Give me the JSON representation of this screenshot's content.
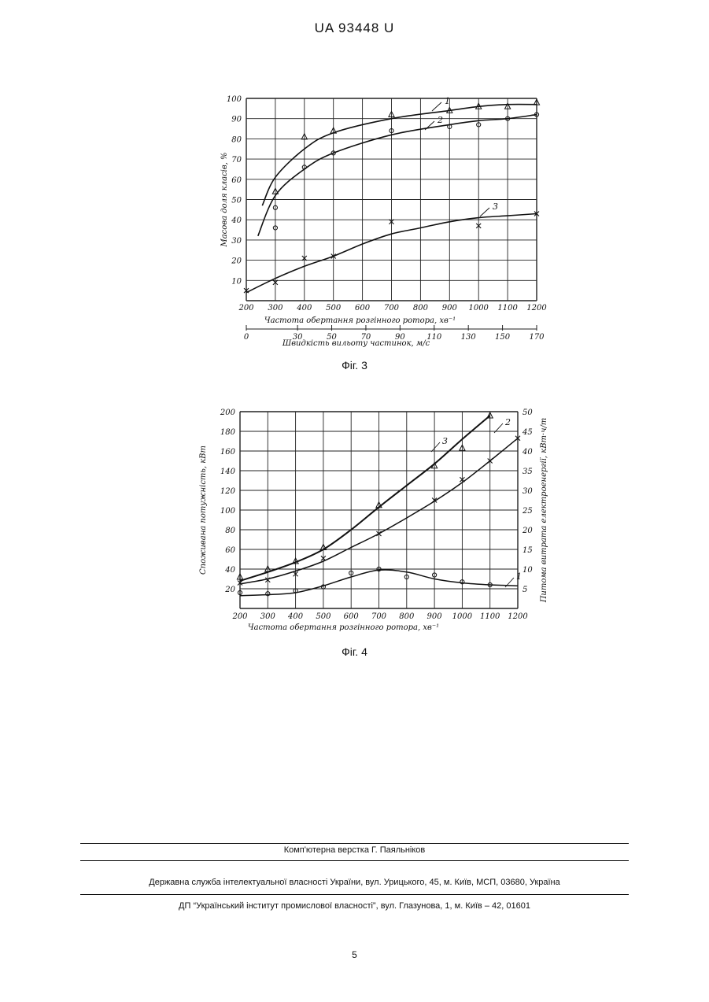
{
  "header": "UA   93448   U",
  "fig3": {
    "caption": "Фіг. 3",
    "ylabel": "Масова доля класів, %",
    "xlabel": "Частота обертання розгінного ротора, хв⁻¹",
    "xlabel2": "Швидкість вильоту частинок, м/с",
    "y_ticks": [
      "10",
      "20",
      "30",
      "40",
      "50",
      "60",
      "70",
      "80",
      "90",
      "100"
    ],
    "x_ticks": [
      "200",
      "300",
      "400",
      "500",
      "600",
      "700",
      "800",
      "900",
      "1000",
      "1100",
      "1200"
    ],
    "x2_ticks": [
      "0",
      "30",
      "50",
      "70",
      "90",
      "110",
      "130",
      "150",
      "170"
    ]
  },
  "fig4": {
    "caption": "Фіг. 4",
    "ylabel_left": "Споживана потужність, кВт",
    "ylabel_right": "Питома витрата електроенергії, кВт·ч/т",
    "xlabel": "Частота обертання розгінного ротора, хв⁻¹",
    "y_left_ticks": [
      "20",
      "40",
      "60",
      "80",
      "100",
      "120",
      "140",
      "160",
      "180",
      "200"
    ],
    "y_right_ticks": [
      "5",
      "10",
      "15",
      "20",
      "25",
      "30",
      "35",
      "40",
      "45",
      "50"
    ],
    "x_ticks": [
      "200",
      "300",
      "400",
      "500",
      "600",
      "700",
      "800",
      "900",
      "1000",
      "1100",
      "1200"
    ]
  },
  "chart_data": [
    {
      "type": "line",
      "title": "Фіг. 3",
      "xlabel": "Частота обертання розгінного ротора, хв⁻¹",
      "ylabel": "Масова доля класів, %",
      "xlim": [
        200,
        1200
      ],
      "ylim": [
        0,
        100
      ],
      "secondary_x": {
        "label": "Швидкість вильоту частинок, м/с",
        "ticks": [
          0,
          30,
          50,
          70,
          90,
          110,
          130,
          150,
          170
        ]
      },
      "grid": true,
      "series": [
        {
          "name": "1",
          "x": [
            255,
            300,
            400,
            500,
            700,
            900,
            1000,
            1100,
            1200
          ],
          "y": [
            47,
            61,
            75,
            83,
            90,
            94,
            96,
            97,
            97
          ],
          "points": {
            "marker": "triangle",
            "x": [
              300,
              400,
              500,
              700,
              900,
              1000,
              1100,
              1200
            ],
            "y": [
              54,
              81,
              84,
              92,
              94,
              96,
              96,
              98
            ]
          }
        },
        {
          "name": "2",
          "x": [
            240,
            300,
            400,
            500,
            700,
            900,
            1000,
            1100,
            1200
          ],
          "y": [
            32,
            52,
            65,
            73,
            82,
            87,
            89,
            90,
            92
          ],
          "points": {
            "marker": "circle",
            "x": [
              300,
              300,
              400,
              500,
              700,
              900,
              1000,
              1100,
              1200
            ],
            "y": [
              36,
              46,
              66,
              73,
              84,
              86,
              87,
              90,
              92
            ]
          }
        },
        {
          "name": "3",
          "x": [
            200,
            300,
            400,
            500,
            600,
            700,
            800,
            900,
            1000,
            1100,
            1200
          ],
          "y": [
            4,
            11,
            17,
            22,
            28,
            33,
            36,
            39,
            41,
            42,
            43
          ],
          "points": {
            "marker": "x",
            "x": [
              200,
              300,
              400,
              500,
              700,
              1000,
              1200
            ],
            "y": [
              5,
              9,
              21,
              22,
              39,
              37,
              43
            ]
          }
        }
      ]
    },
    {
      "type": "line",
      "title": "Фіг. 4",
      "xlabel": "Частота обертання розгінного ротора, хв⁻¹",
      "ylabel": "Споживана потужність, кВт",
      "ylabel_right": "Питома витрата електроенергії, кВт·ч/т",
      "xlim": [
        200,
        1200
      ],
      "ylim": [
        0,
        200
      ],
      "ylim_right": [
        0,
        50
      ],
      "grid": true,
      "series": [
        {
          "name": "1",
          "x": [
            200,
            300,
            400,
            500,
            600,
            700,
            800,
            900,
            1000,
            1100,
            1200
          ],
          "y": [
            13,
            14,
            16,
            23,
            32,
            39,
            37,
            30,
            26,
            24,
            23
          ],
          "points": {
            "marker": "circle",
            "x": [
              200,
              300,
              400,
              500,
              600,
              700,
              800,
              900,
              1000,
              1100
            ],
            "y": [
              16,
              15,
              18,
              22,
              36,
              40,
              32,
              34,
              27,
              24
            ]
          }
        },
        {
          "name": "2",
          "x": [
            200,
            300,
            400,
            500,
            600,
            700,
            800,
            900,
            1000,
            1100,
            1200
          ],
          "y": [
            25,
            30,
            38,
            48,
            62,
            76,
            92,
            109,
            128,
            150,
            173
          ],
          "points": {
            "marker": "x",
            "x": [
              200,
              300,
              400,
              500,
              700,
              900,
              1000,
              1100,
              1200
            ],
            "y": [
              26,
              29,
              35,
              51,
              76,
              110,
              131,
              150,
              173
            ]
          }
        },
        {
          "name": "3",
          "x": [
            200,
            300,
            400,
            500,
            600,
            700,
            800,
            900,
            1000,
            1100
          ],
          "y": [
            28,
            37,
            47,
            60,
            80,
            103,
            125,
            147,
            172,
            196
          ],
          "points": {
            "marker": "triangle",
            "x": [
              200,
              300,
              400,
              500,
              700,
              900,
              1000,
              1100
            ],
            "y": [
              32,
              40,
              48,
              62,
              105,
              145,
              163,
              196
            ]
          }
        }
      ]
    }
  ],
  "footer": {
    "line1": "Комп'ютерна верстка Г. Паяльніков",
    "line2": "Державна служба інтелектуальної власності України, вул. Урицького, 45, м. Київ, МСП, 03680, Україна",
    "line3": "ДП “Український інститут промислової власності”, вул. Глазунова, 1, м. Київ – 42, 01601"
  },
  "page_number": "5"
}
